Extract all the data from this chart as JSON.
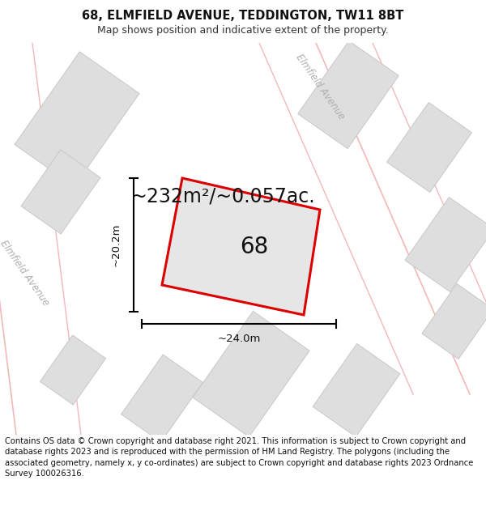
{
  "title": "68, ELMFIELD AVENUE, TEDDINGTON, TW11 8BT",
  "subtitle": "Map shows position and indicative extent of the property.",
  "area_text": "~232m²/~0.057ac.",
  "label_68": "68",
  "dim_width": "~24.0m",
  "dim_height": "~20.2m",
  "footer": "Contains OS data © Crown copyright and database right 2021. This information is subject to Crown copyright and database rights 2023 and is reproduced with the permission of HM Land Registry. The polygons (including the associated geometry, namely x, y co-ordinates) are subject to Crown copyright and database rights 2023 Ordnance Survey 100026316.",
  "bg_color": "#ebebeb",
  "road_color": "#ffffff",
  "building_color": "#dedede",
  "building_edge_color": "#c8c8c8",
  "road_pink_color": "#f2b8b8",
  "plot_outline_color": "#dd0000",
  "plot_fill_color": "#e8e8e8",
  "title_fontsize": 10.5,
  "subtitle_fontsize": 9,
  "area_fontsize": 17,
  "label_fontsize": 20,
  "dim_fontsize": 9.5,
  "road_label_fontsize": 8.5,
  "footer_fontsize": 7.2,
  "road_label_color": "#b0b0b0"
}
